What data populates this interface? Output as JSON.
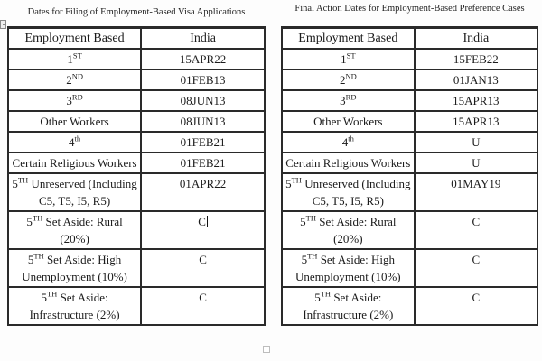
{
  "colors": {
    "table_border": "#2a2a2a",
    "text": "#1b1b1b",
    "handle_border": "#bdbdbd"
  },
  "left_table": {
    "title": "Dates for Filing of Employment-Based Visa Applications",
    "columns": [
      "Employment Based",
      "India"
    ],
    "rows": [
      {
        "prefix": "1",
        "sup": "ST",
        "suffix": "",
        "value": "15APR22"
      },
      {
        "prefix": "2",
        "sup": "ND",
        "suffix": "",
        "value": "01FEB13"
      },
      {
        "prefix": "3",
        "sup": "RD",
        "suffix": "",
        "value": "08JUN13"
      },
      {
        "prefix": "Other Workers",
        "sup": "",
        "suffix": "",
        "value": "08JUN13"
      },
      {
        "prefix": "4",
        "sup": "th",
        "suffix": "",
        "value": "01FEB21"
      },
      {
        "prefix": "Certain Religious Workers",
        "sup": "",
        "suffix": "",
        "value": "01FEB21"
      },
      {
        "prefix": "5",
        "sup": "TH",
        "suffix": " Unreserved (Including C5, T5, I5, R5)",
        "value": "01APR22"
      },
      {
        "prefix": "5",
        "sup": "TH",
        "suffix": " Set Aside: Rural (20%)",
        "value": "C",
        "cursor": true
      },
      {
        "prefix": "5",
        "sup": "TH",
        "suffix": " Set Aside: High Unemployment (10%)",
        "value": "C"
      },
      {
        "prefix": "5",
        "sup": "TH",
        "suffix": " Set Aside: Infrastructure (2%)",
        "value": "C"
      }
    ]
  },
  "right_table": {
    "title": "Final Action Dates for Employment-Based Preference Cases",
    "columns": [
      "Employment Based",
      "India"
    ],
    "rows": [
      {
        "prefix": "1",
        "sup": "ST",
        "suffix": "",
        "value": "15FEB22"
      },
      {
        "prefix": "2",
        "sup": "ND",
        "suffix": "",
        "value": "01JAN13"
      },
      {
        "prefix": "3",
        "sup": "RD",
        "suffix": "",
        "value": "15APR13"
      },
      {
        "prefix": "Other Workers",
        "sup": "",
        "suffix": "",
        "value": "15APR13"
      },
      {
        "prefix": "4",
        "sup": "th",
        "suffix": "",
        "value": "U"
      },
      {
        "prefix": "Certain Religious Workers",
        "sup": "",
        "suffix": "",
        "value": "U"
      },
      {
        "prefix": "5",
        "sup": "TH",
        "suffix": " Unreserved (Including C5, T5, I5, R5)",
        "value": "01MAY19"
      },
      {
        "prefix": "5",
        "sup": "TH",
        "suffix": " Set Aside: Rural (20%)",
        "value": "C"
      },
      {
        "prefix": "5",
        "sup": "TH",
        "suffix": " Set Aside: High Unemployment (10%)",
        "value": "C"
      },
      {
        "prefix": "5",
        "sup": "TH",
        "suffix": " Set Aside: Infrastructure (2%)",
        "value": "C"
      }
    ]
  }
}
